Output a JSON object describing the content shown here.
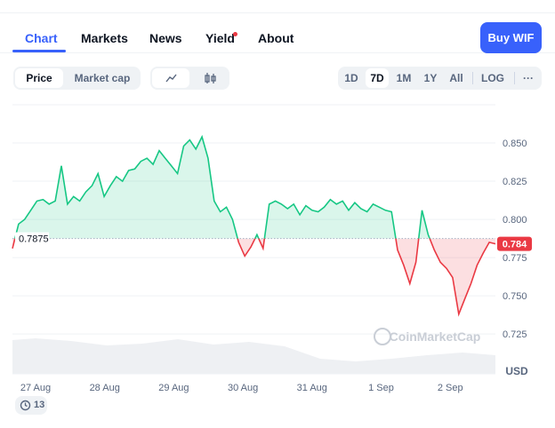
{
  "tabs": [
    "Chart",
    "Markets",
    "News",
    "Yield",
    "About"
  ],
  "buy_button": "Buy WIF",
  "view_toggle": [
    "Price",
    "Market cap"
  ],
  "ranges": [
    "1D",
    "7D",
    "1M",
    "1Y",
    "All"
  ],
  "log_button": "LOG",
  "more_button": "···",
  "badge": "13",
  "chart_data": {
    "type": "line",
    "x_labels": [
      "27 Aug",
      "28 Aug",
      "29 Aug",
      "30 Aug",
      "31 Aug",
      "1 Sep",
      "2 Sep"
    ],
    "series": [
      {
        "values": [
          0.781,
          0.797,
          0.8,
          0.806,
          0.812,
          0.813,
          0.81,
          0.812,
          0.835,
          0.81,
          0.815,
          0.812,
          0.818,
          0.822,
          0.83,
          0.815,
          0.822,
          0.828,
          0.825,
          0.832,
          0.833,
          0.838,
          0.84,
          0.836,
          0.845,
          0.84,
          0.835,
          0.83,
          0.848,
          0.852,
          0.846,
          0.854,
          0.84,
          0.812,
          0.805,
          0.808,
          0.8,
          0.785,
          0.776,
          0.782,
          0.79,
          0.781,
          0.81,
          0.812,
          0.81,
          0.807,
          0.81,
          0.803,
          0.809,
          0.806,
          0.805,
          0.808,
          0.813,
          0.81,
          0.812,
          0.806,
          0.811,
          0.807,
          0.805,
          0.81,
          0.808,
          0.806,
          0.805,
          0.78,
          0.77,
          0.758,
          0.772,
          0.806,
          0.79,
          0.78,
          0.772,
          0.768,
          0.762,
          0.738,
          0.748,
          0.758,
          0.77,
          0.778,
          0.785,
          0.784
        ]
      }
    ],
    "colors": {
      "above": "#16c784",
      "below": "#ea3943"
    },
    "baseline": 0.7875,
    "current": 0.784,
    "ylim": [
      0.71,
      0.875
    ],
    "yticks": [
      {
        "value": 0.725,
        "label": "0.725"
      },
      {
        "value": 0.75,
        "label": "0.750"
      },
      {
        "value": 0.775,
        "label": "0.775"
      },
      {
        "value": 0.8,
        "label": "0.800"
      },
      {
        "value": 0.825,
        "label": "0.825"
      },
      {
        "value": 0.85,
        "label": "0.850"
      }
    ],
    "grid": true,
    "y_unit": "USD",
    "watermark": "CoinMarketCap"
  }
}
